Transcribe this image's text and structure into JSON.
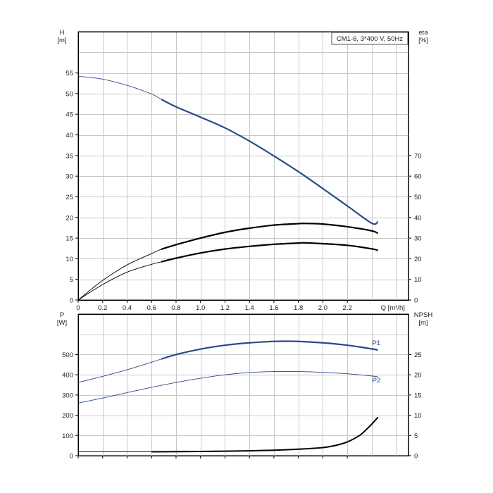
{
  "chart_data": [
    {
      "type": "line",
      "legend_box": "CM1-6, 3*400 V, 50Hz",
      "legend_placement": "top-right",
      "grid": true,
      "x_axis": {
        "label": "Q [m³/h]",
        "range": [
          0,
          2.7
        ],
        "ticks": [
          0,
          0.2,
          0.4,
          0.6,
          0.8,
          1.0,
          1.2,
          1.4,
          1.6,
          1.8,
          2.0,
          2.2
        ],
        "tick_labels": [
          "0",
          "0.2",
          "0.4",
          "0.6",
          "0.8",
          "1.0",
          "1.2",
          "1.4",
          "1.6",
          "1.8",
          "2.0",
          "2.2"
        ]
      },
      "y_left": {
        "label_top": "H",
        "label_unit": "[m]",
        "range": [
          0,
          65
        ],
        "ticks": [
          0,
          5,
          10,
          15,
          20,
          25,
          30,
          35,
          40,
          45,
          50,
          55
        ]
      },
      "y_right": {
        "label_top": "eta",
        "label_unit": "[%]",
        "range": [
          0,
          130
        ],
        "ticks": [
          0,
          10,
          20,
          30,
          40,
          50,
          60,
          70
        ]
      },
      "series": [
        {
          "axis": "left",
          "color": "#2a4a8a",
          "x": [
            0,
            0.2,
            0.4,
            0.6,
            0.68,
            0.8,
            1.0,
            1.2,
            1.4,
            1.6,
            1.8,
            2.0,
            2.2,
            2.4,
            2.45
          ],
          "y": [
            54.2,
            53.5,
            52.0,
            49.9,
            48.6,
            46.8,
            44.3,
            41.7,
            38.5,
            34.9,
            31.1,
            27.0,
            22.8,
            18.6,
            19.0
          ]
        },
        {
          "axis": "right",
          "color": "#000000",
          "x": [
            0,
            0.2,
            0.4,
            0.6,
            0.68,
            0.8,
            1.0,
            1.2,
            1.4,
            1.6,
            1.8,
            1.85,
            2.0,
            2.2,
            2.4,
            2.45
          ],
          "y": [
            0,
            9.5,
            17,
            22.5,
            24.6,
            26.8,
            30.0,
            32.8,
            34.8,
            36.3,
            37.0,
            37.1,
            36.8,
            35.5,
            33.5,
            32.3
          ]
        },
        {
          "axis": "right",
          "color": "#000000",
          "x": [
            0,
            0.2,
            0.4,
            0.6,
            0.68,
            0.8,
            1.0,
            1.2,
            1.4,
            1.6,
            1.8,
            1.85,
            2.0,
            2.2,
            2.4,
            2.45
          ],
          "y": [
            0,
            7.5,
            13.5,
            17.3,
            18.5,
            20.3,
            22.8,
            24.7,
            26.0,
            27.0,
            27.6,
            27.7,
            27.3,
            26.5,
            24.8,
            24.0
          ]
        }
      ]
    },
    {
      "type": "line",
      "grid": true,
      "x_axis": {
        "range": [
          0,
          2.7
        ],
        "ticks": [
          0,
          0.2,
          0.4,
          0.6,
          0.8,
          1.0,
          1.2,
          1.4,
          1.6,
          1.8,
          2.0,
          2.2
        ]
      },
      "y_left": {
        "label_top": "P",
        "label_unit": "[W]",
        "range": [
          0,
          700
        ],
        "ticks": [
          0,
          100,
          200,
          300,
          400,
          500
        ],
        "tick_labels": [
          "0",
          "100",
          "200",
          "300",
          "400",
          "500"
        ]
      },
      "y_right": {
        "label_top": "NPSH",
        "label_unit": "[m]",
        "range": [
          0,
          35
        ],
        "ticks": [
          0,
          5,
          10,
          15,
          20,
          25
        ],
        "tick_labels": [
          "0",
          "5",
          "10",
          "15",
          "20",
          "25"
        ]
      },
      "series": [
        {
          "name": "P1",
          "axis": "left",
          "color": "#2a4a8a",
          "x": [
            0,
            0.2,
            0.4,
            0.6,
            0.68,
            0.8,
            1.0,
            1.2,
            1.4,
            1.6,
            1.7,
            1.8,
            2.0,
            2.2,
            2.4,
            2.45
          ],
          "y": [
            362,
            392,
            425,
            462,
            478,
            500,
            527,
            546,
            558,
            565,
            566,
            565,
            558,
            546,
            528,
            522
          ]
        },
        {
          "name": "P2",
          "axis": "left",
          "color": "#2a4a8a",
          "x": [
            0,
            0.2,
            0.4,
            0.6,
            0.8,
            1.0,
            1.2,
            1.4,
            1.6,
            1.8,
            2.0,
            2.2,
            2.4,
            2.45
          ],
          "y": [
            260,
            285,
            312,
            338,
            362,
            383,
            400,
            411,
            416,
            416,
            412,
            405,
            394,
            390
          ]
        },
        {
          "axis": "right",
          "color": "#000000",
          "x": [
            0,
            0.4,
            0.6,
            0.8,
            1.0,
            1.2,
            1.4,
            1.6,
            1.8,
            2.0,
            2.1,
            2.2,
            2.3,
            2.35,
            2.4,
            2.45
          ],
          "y": [
            0.95,
            0.95,
            0.95,
            1.0,
            1.05,
            1.1,
            1.2,
            1.35,
            1.6,
            2.0,
            2.5,
            3.4,
            5.0,
            6.3,
            7.8,
            9.5
          ]
        }
      ]
    }
  ]
}
